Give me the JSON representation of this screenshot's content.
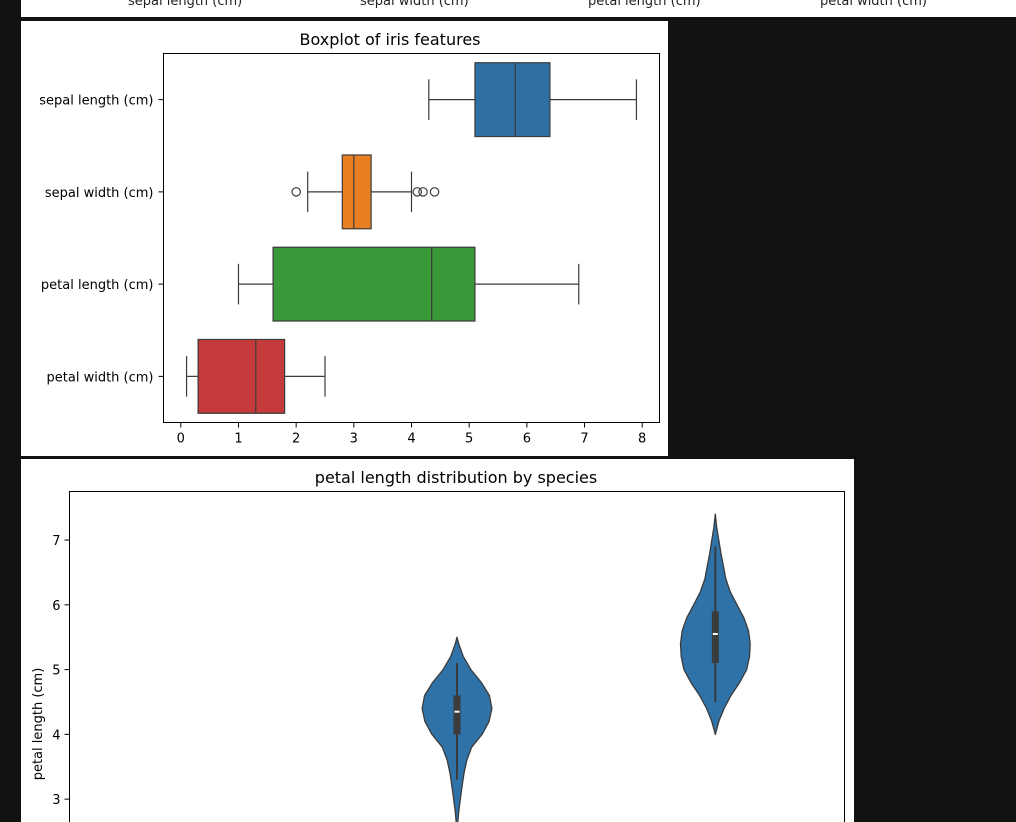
{
  "top_strip": {
    "labels": [
      "sepal length (cm)",
      "sepal width (cm)",
      "petal length (cm)",
      "petal width (cm)"
    ]
  },
  "chart_data": [
    {
      "type": "boxplot",
      "orientation": "horizontal",
      "title": "Boxplot of iris features",
      "xlim": [
        -0.3,
        8.3
      ],
      "xticks": [
        0,
        1,
        2,
        3,
        4,
        5,
        6,
        7,
        8
      ],
      "categories": [
        "sepal length (cm)",
        "sepal width (cm)",
        "petal length (cm)",
        "petal width (cm)"
      ],
      "boxes": [
        {
          "name": "sepal length (cm)",
          "whisker_low": 4.3,
          "q1": 5.1,
          "median": 5.8,
          "q3": 6.4,
          "whisker_high": 7.9,
          "outliers": [],
          "color": "#2f6fa3"
        },
        {
          "name": "sepal width (cm)",
          "whisker_low": 2.2,
          "q1": 2.8,
          "median": 3.0,
          "q3": 3.3,
          "whisker_high": 4.0,
          "outliers": [
            2.0,
            4.1,
            4.2,
            4.4
          ],
          "color": "#e87f22"
        },
        {
          "name": "petal length (cm)",
          "whisker_low": 1.0,
          "q1": 1.6,
          "median": 4.35,
          "q3": 5.1,
          "whisker_high": 6.9,
          "outliers": [],
          "color": "#3a9a3a"
        },
        {
          "name": "petal width (cm)",
          "whisker_low": 0.1,
          "q1": 0.3,
          "median": 1.3,
          "q3": 1.8,
          "whisker_high": 2.5,
          "outliers": [],
          "color": "#c53a3b"
        }
      ]
    },
    {
      "type": "violin",
      "title": "petal length distribution by species",
      "ylabel": "petal length (cm)",
      "ylim": [
        2.5,
        7.75
      ],
      "yticks": [
        3,
        4,
        5,
        6,
        7
      ],
      "color": "#2f72a8",
      "series": [
        {
          "position": 2,
          "min": 2.5,
          "max": 5.5,
          "q1": 4.0,
          "median": 4.35,
          "q3": 4.6,
          "whisker_low": 3.3,
          "whisker_high": 5.1,
          "profile": [
            [
              2.5,
              0.0
            ],
            [
              2.8,
              0.05
            ],
            [
              3.1,
              0.12
            ],
            [
              3.4,
              0.2
            ],
            [
              3.6,
              0.28
            ],
            [
              3.8,
              0.42
            ],
            [
              4.0,
              0.72
            ],
            [
              4.2,
              0.92
            ],
            [
              4.4,
              1.0
            ],
            [
              4.6,
              0.93
            ],
            [
              4.8,
              0.7
            ],
            [
              5.0,
              0.4
            ],
            [
              5.2,
              0.18
            ],
            [
              5.4,
              0.05
            ],
            [
              5.5,
              0.0
            ]
          ]
        },
        {
          "position": 3,
          "min": 4.0,
          "max": 7.4,
          "q1": 5.1,
          "median": 5.55,
          "q3": 5.9,
          "whisker_low": 4.5,
          "whisker_high": 6.9,
          "profile": [
            [
              4.0,
              0.0
            ],
            [
              4.2,
              0.1
            ],
            [
              4.4,
              0.25
            ],
            [
              4.6,
              0.45
            ],
            [
              4.8,
              0.7
            ],
            [
              5.0,
              0.9
            ],
            [
              5.2,
              0.98
            ],
            [
              5.4,
              1.0
            ],
            [
              5.6,
              0.95
            ],
            [
              5.8,
              0.82
            ],
            [
              6.0,
              0.62
            ],
            [
              6.2,
              0.43
            ],
            [
              6.4,
              0.3
            ],
            [
              6.6,
              0.23
            ],
            [
              6.8,
              0.16
            ],
            [
              7.0,
              0.1
            ],
            [
              7.2,
              0.04
            ],
            [
              7.4,
              0.0
            ]
          ]
        }
      ]
    }
  ]
}
